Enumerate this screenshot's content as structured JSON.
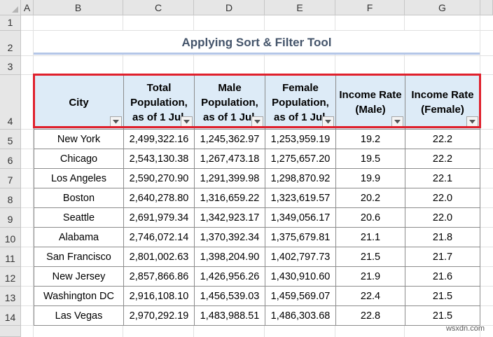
{
  "sheet": {
    "columns": [
      "A",
      "B",
      "C",
      "D",
      "E",
      "F",
      "G"
    ],
    "rows": [
      "1",
      "2",
      "3",
      "4",
      "5",
      "6",
      "7",
      "8",
      "9",
      "10",
      "11",
      "12",
      "13",
      "14"
    ]
  },
  "title": "Applying Sort & Filter Tool",
  "table": {
    "headers": [
      {
        "lines": [
          "City"
        ]
      },
      {
        "lines": [
          "Total",
          "Population,",
          "as of 1 Jul"
        ]
      },
      {
        "lines": [
          "Male",
          "Population,",
          "as of 1 Jul"
        ]
      },
      {
        "lines": [
          "Female",
          "Population,",
          "as of 1 Jul"
        ]
      },
      {
        "lines": [
          "Income Rate",
          "(Male)"
        ]
      },
      {
        "lines": [
          "Income Rate",
          "(Female)"
        ]
      }
    ],
    "rows": [
      [
        "New York",
        "2,499,322.16",
        "1,245,362.97",
        "1,253,959.19",
        "19.2",
        "22.2"
      ],
      [
        "Chicago",
        "2,543,130.38",
        "1,267,473.18",
        "1,275,657.20",
        "19.5",
        "22.2"
      ],
      [
        "Los Angeles",
        "2,590,270.90",
        "1,291,399.98",
        "1,298,870.92",
        "19.9",
        "22.1"
      ],
      [
        "Boston",
        "2,640,278.80",
        "1,316,659.22",
        "1,323,619.57",
        "20.2",
        "22.0"
      ],
      [
        "Seattle",
        "2,691,979.34",
        "1,342,923.17",
        "1,349,056.17",
        "20.6",
        "22.0"
      ],
      [
        "Alabama",
        "2,746,072.14",
        "1,370,392.34",
        "1,375,679.81",
        "21.1",
        "21.8"
      ],
      [
        "San Francisco",
        "2,801,002.63",
        "1,398,204.90",
        "1,402,797.73",
        "21.5",
        "21.7"
      ],
      [
        "New Jersey",
        "2,857,866.86",
        "1,426,956.26",
        "1,430,910.60",
        "21.9",
        "21.6"
      ],
      [
        "Washington DC",
        "2,916,108.10",
        "1,456,539.03",
        "1,459,569.07",
        "22.4",
        "21.5"
      ],
      [
        "Las Vegas",
        "2,970,292.19",
        "1,483,988.51",
        "1,486,303.68",
        "22.8",
        "21.5"
      ]
    ]
  },
  "watermark": "wsxdn.com",
  "colors": {
    "title": "#44546a",
    "header_fill": "#ddebf7",
    "highlight_border": "#e0202c"
  }
}
